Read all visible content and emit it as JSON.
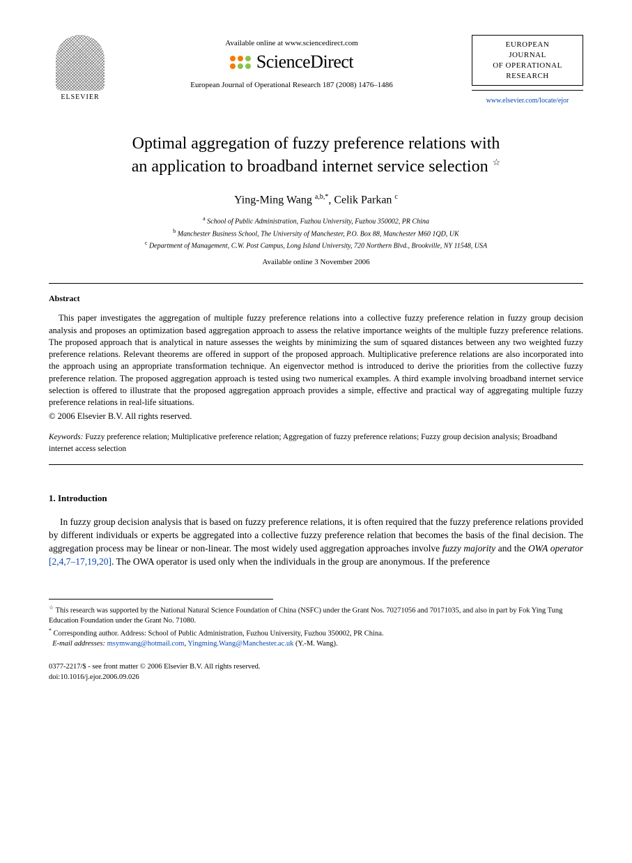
{
  "header": {
    "elsevier_label": "ELSEVIER",
    "available_online_text": "Available online at www.sciencedirect.com",
    "sd_brand": "ScienceDirect",
    "citation": "European Journal of Operational Research 187 (2008) 1476–1486",
    "journal_box_line1": "EUROPEAN",
    "journal_box_line2": "JOURNAL",
    "journal_box_line3": "OF OPERATIONAL",
    "journal_box_line4": "RESEARCH",
    "locate_url": "www.elsevier.com/locate/ejor"
  },
  "title_line1": "Optimal aggregation of fuzzy preference relations with",
  "title_line2": "an application to broadband internet service selection",
  "title_star": "☆",
  "authors": {
    "a1_name": "Ying-Ming Wang",
    "a1_sup": "a,b,*",
    "sep": ", ",
    "a2_name": "Celik Parkan",
    "a2_sup": "c"
  },
  "affiliations": {
    "a": "School of Public Administration, Fuzhou University, Fuzhou 350002, PR China",
    "b": "Manchester Business School, The University of Manchester, P.O. Box 88, Manchester M60 1QD, UK",
    "c": "Department of Management, C.W. Post Campus, Long Island University, 720 Northern Blvd., Brookville, NY 11548, USA"
  },
  "available_date": "Available online 3 November 2006",
  "abstract": {
    "heading": "Abstract",
    "body": "This paper investigates the aggregation of multiple fuzzy preference relations into a collective fuzzy preference relation in fuzzy group decision analysis and proposes an optimization based aggregation approach to assess the relative importance weights of the multiple fuzzy preference relations. The proposed approach that is analytical in nature assesses the weights by minimizing the sum of squared distances between any two weighted fuzzy preference relations. Relevant theorems are offered in support of the proposed approach. Multiplicative preference relations are also incorporated into the approach using an appropriate transformation technique. An eigenvector method is introduced to derive the priorities from the collective fuzzy preference relation. The proposed aggregation approach is tested using two numerical examples. A third example involving broadband internet service selection is offered to illustrate that the proposed aggregation approach provides a simple, effective and practical way of aggregating multiple fuzzy preference relations in real-life situations.",
    "copyright": "© 2006 Elsevier B.V. All rights reserved."
  },
  "keywords": {
    "label": "Keywords:",
    "text": " Fuzzy preference relation; Multiplicative preference relation; Aggregation of fuzzy preference relations; Fuzzy group decision analysis; Broadband internet access selection"
  },
  "section1": {
    "heading": "1. Introduction",
    "para_pre": "In fuzzy group decision analysis that is based on fuzzy preference relations, it is often required that the fuzzy preference relations provided by different individuals or experts be aggregated into a collective fuzzy preference relation that becomes the basis of the final decision. The aggregation process may be linear or non-linear. The most widely used aggregation approaches involve ",
    "ital1": "fuzzy majority",
    "mid": " and the ",
    "ital2": "OWA operator",
    "ref": " [2,4,7–17,19,20]",
    "post": ". The OWA operator is used only when the individuals in the group are anonymous. If the preference"
  },
  "footnotes": {
    "star": "This research was supported by the National Natural Science Foundation of China (NSFC) under the Grant Nos. 70271056 and 70171035, and also in part by Fok Ying Tung Education Foundation under the Grant No. 71080.",
    "corr": "Corresponding author. Address: School of Public Administration, Fuzhou University, Fuzhou 350002, PR China.",
    "email_label": "E-mail addresses:",
    "email1": "msymwang@hotmail.com",
    "email_sep": ", ",
    "email2": "Yingming.Wang@Manchester.ac.uk",
    "email_tail": " (Y.-M. Wang)."
  },
  "footer": {
    "line1": "0377-2217/$ - see front matter  © 2006 Elsevier B.V. All rights reserved.",
    "line2": "doi:10.1016/j.ejor.2006.09.026"
  },
  "colors": {
    "link": "#0645ad",
    "sd_orange": "#f57c00",
    "sd_green": "#8bc34a",
    "text": "#000000",
    "bg": "#ffffff"
  }
}
